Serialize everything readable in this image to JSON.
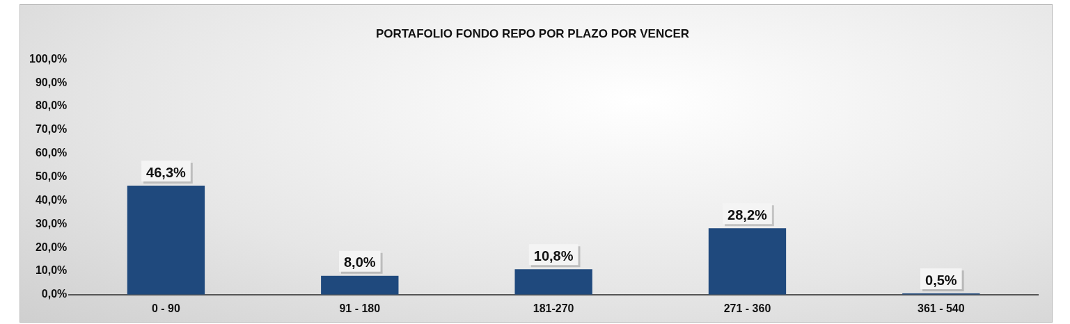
{
  "chart_data": {
    "type": "bar",
    "title": "PORTAFOLIO FONDO REPO POR PLAZO POR VENCER",
    "categories": [
      "0 - 90",
      "91 - 180",
      "181-270",
      "271 - 360",
      "361 - 540"
    ],
    "values": [
      46.3,
      8.0,
      10.8,
      28.2,
      0.5
    ],
    "value_labels": [
      "46,3%",
      "8,0%",
      "10,8%",
      "28,2%",
      "0,5%"
    ],
    "color": "#1f497d",
    "ylim": [
      0,
      100
    ],
    "yticks": [
      {
        "value": 0,
        "label": "0,0%"
      },
      {
        "value": 10,
        "label": "10,0%"
      },
      {
        "value": 20,
        "label": "20,0%"
      },
      {
        "value": 30,
        "label": "30,0%"
      },
      {
        "value": 40,
        "label": "40,0%"
      },
      {
        "value": 50,
        "label": "50,0%"
      },
      {
        "value": 60,
        "label": "60,0%"
      },
      {
        "value": 70,
        "label": "70,0%"
      },
      {
        "value": 80,
        "label": "80,0%"
      },
      {
        "value": 90,
        "label": "90,0%"
      },
      {
        "value": 100,
        "label": "100,0%"
      }
    ],
    "grid": false,
    "legend": false
  }
}
